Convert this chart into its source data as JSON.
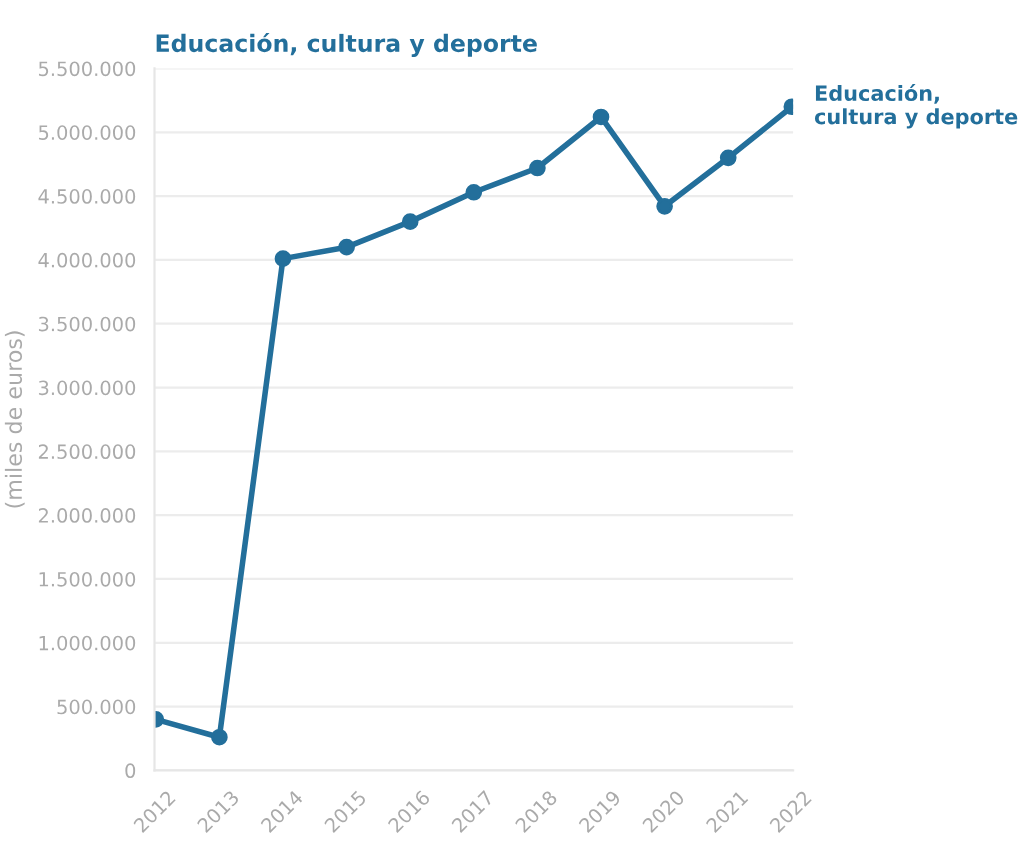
{
  "chart_data": {
    "type": "line",
    "title": "Educación, cultura y deporte",
    "ylabel": "(miles de euros)",
    "categories": [
      "2012",
      "2013",
      "2014",
      "2015",
      "2016",
      "2017",
      "2018",
      "2019",
      "2020",
      "2021",
      "2022"
    ],
    "series": [
      {
        "name": "Educación,\ncultura y deporte",
        "color": "#236f9b",
        "values": [
          400000,
          260000,
          4010000,
          4100000,
          4300000,
          4530000,
          4720000,
          5120000,
          4420000,
          4800000,
          5200000
        ]
      }
    ],
    "ylim": [
      0,
      5500000
    ],
    "yticks": [
      {
        "value": 0,
        "label": "0"
      },
      {
        "value": 500000,
        "label": "500.000"
      },
      {
        "value": 1000000,
        "label": "1.000.000"
      },
      {
        "value": 1500000,
        "label": "1.500.000"
      },
      {
        "value": 2000000,
        "label": "2.000.000"
      },
      {
        "value": 2500000,
        "label": "2.500.000"
      },
      {
        "value": 3000000,
        "label": "3.000.000"
      },
      {
        "value": 3500000,
        "label": "3.500.000"
      },
      {
        "value": 4000000,
        "label": "4.000.000"
      },
      {
        "value": 4500000,
        "label": "4.500.000"
      },
      {
        "value": 5000000,
        "label": "5.000.000"
      },
      {
        "value": 5500000,
        "label": "5.500.000"
      }
    ],
    "grid": "y",
    "marker": "circle",
    "line_style": "solid"
  }
}
